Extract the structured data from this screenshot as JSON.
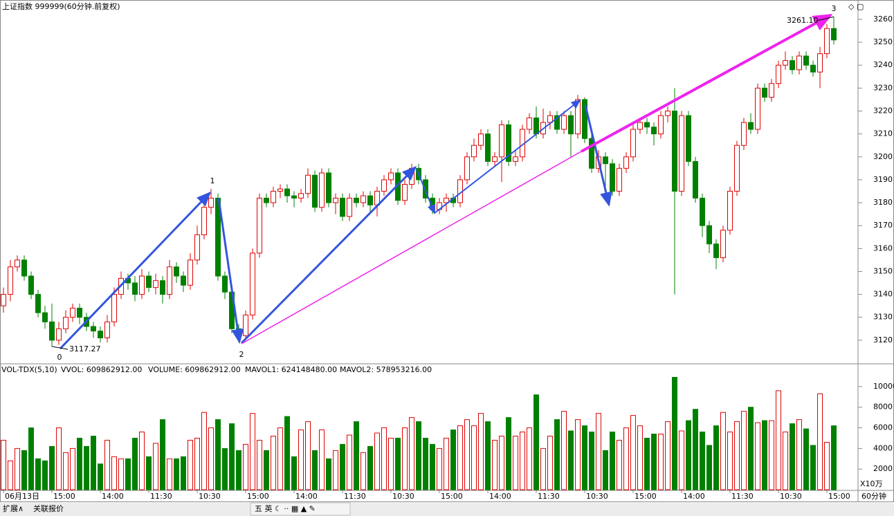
{
  "header": {
    "title": "上证指数 999999(60分钟.前复权)"
  },
  "chart_data": {
    "type": "candlestick",
    "categories": [
      "06月13日",
      null,
      null,
      null,
      null,
      null,
      null,
      "15:00",
      null,
      null,
      null,
      null,
      null,
      null,
      "14:00",
      null,
      null,
      null,
      null,
      null,
      null,
      "11:30",
      null,
      null,
      null,
      null,
      null,
      null,
      "10:30",
      null,
      null,
      null,
      null,
      null,
      null,
      "15:00",
      null,
      null,
      null,
      null,
      null,
      null,
      "14:00",
      null,
      null,
      null,
      null,
      null,
      null,
      "11:30",
      null,
      null,
      null,
      null,
      null,
      null,
      "10:30",
      null,
      null,
      null,
      null,
      null,
      null,
      "15:00",
      null,
      null,
      null,
      null,
      null,
      null,
      "14:00",
      null,
      null,
      null,
      null,
      null,
      null,
      "11:30",
      null,
      null,
      null,
      null,
      null,
      null,
      "10:30",
      null,
      null,
      null,
      null,
      null,
      null,
      "15:00",
      null,
      null,
      null,
      null,
      null,
      null,
      "14:00",
      null,
      null,
      null,
      null,
      null,
      null,
      "11:30",
      null,
      null,
      null,
      null,
      null,
      null,
      "10:30",
      null,
      null,
      null,
      null,
      null,
      null,
      "15:00",
      null
    ],
    "open": [
      3135,
      3140,
      3152,
      3155,
      3148,
      3140,
      3132,
      3128,
      3120,
      3125,
      3130,
      3134,
      3130,
      3126,
      3124,
      3121,
      3128,
      3140,
      3147,
      3145,
      3140,
      3148,
      3143,
      3146,
      3140,
      3152,
      3148,
      3144,
      3155,
      3166,
      3178,
      3182,
      3148,
      3141,
      3125,
      3122,
      3131,
      3158,
      3182,
      3180,
      3185,
      3186,
      3183,
      3182,
      3184,
      3192,
      3178,
      3193,
      3180,
      3182,
      3174,
      3182,
      3180,
      3183,
      3179,
      3185,
      3190,
      3193,
      3181,
      3188,
      3195,
      3190,
      3182,
      3177,
      3180,
      3182,
      3180,
      3190,
      3200,
      3205,
      3210,
      3198,
      3200,
      3214,
      3198,
      3200,
      3212,
      3217,
      3210,
      3215,
      3218,
      3212,
      3218,
      3210,
      3225,
      3208,
      3195,
      3200,
      3197,
      3185,
      3195,
      3200,
      3212,
      3215,
      3213,
      3210,
      3218,
      3220,
      3185,
      3218,
      3198,
      3182,
      3170,
      3162,
      3156,
      3168,
      3185,
      3205,
      3215,
      3212,
      3230,
      3226,
      3232,
      3240,
      3242,
      3238,
      3244,
      3240,
      3237,
      3245,
      3256
    ],
    "high": [
      3143,
      3155,
      3157,
      3157,
      3150,
      3142,
      3135,
      3136,
      3128,
      3133,
      3136,
      3136,
      3132,
      3128,
      3126,
      3131,
      3143,
      3150,
      3149,
      3148,
      3151,
      3150,
      3149,
      3148,
      3155,
      3154,
      3150,
      3158,
      3170,
      3181,
      3186,
      3184,
      3150,
      3143,
      3127,
      3133,
      3160,
      3184,
      3184,
      3187,
      3188,
      3188,
      3185,
      3186,
      3195,
      3194,
      3195,
      3195,
      3184,
      3184,
      3184,
      3184,
      3185,
      3185,
      3187,
      3192,
      3195,
      3195,
      3190,
      3197,
      3197,
      3192,
      3184,
      3182,
      3184,
      3184,
      3192,
      3202,
      3208,
      3212,
      3212,
      3202,
      3216,
      3216,
      3203,
      3214,
      3219,
      3222,
      3221,
      3220,
      3220,
      3220,
      3220,
      3227,
      3226,
      3210,
      3203,
      3202,
      3199,
      3197,
      3202,
      3214,
      3217,
      3217,
      3215,
      3220,
      3222,
      3230,
      3220,
      3220,
      3200,
      3184,
      3172,
      3164,
      3170,
      3187,
      3207,
      3217,
      3219,
      3232,
      3232,
      3234,
      3242,
      3246,
      3244,
      3246,
      3246,
      3242,
      3248,
      3258,
      3261.1
    ],
    "low": [
      3132,
      3137,
      3150,
      3146,
      3138,
      3130,
      3125,
      3117.27,
      3118,
      3123,
      3128,
      3127,
      3124,
      3121,
      3119,
      3119,
      3126,
      3138,
      3142,
      3137,
      3138,
      3141,
      3140,
      3136,
      3138,
      3145,
      3141,
      3142,
      3153,
      3164,
      3175,
      3146,
      3138,
      3123,
      3119,
      3120,
      3129,
      3156,
      3178,
      3178,
      3182,
      3180,
      3178,
      3180,
      3182,
      3176,
      3176,
      3178,
      3175,
      3172,
      3172,
      3178,
      3178,
      3176,
      3174,
      3183,
      3188,
      3179,
      3179,
      3186,
      3188,
      3180,
      3175,
      3175,
      3176,
      3178,
      3178,
      3188,
      3198,
      3203,
      3196,
      3196,
      3189,
      3196,
      3196,
      3198,
      3210,
      3208,
      3208,
      3212,
      3210,
      3210,
      3200,
      3208,
      3206,
      3193,
      3193,
      3182,
      3183,
      3183,
      3193,
      3198,
      3210,
      3210,
      3205,
      3208,
      3215,
      3140,
      3183,
      3196,
      3180,
      3165,
      3158,
      3151,
      3154,
      3166,
      3183,
      3203,
      3210,
      3210,
      3224,
      3224,
      3230,
      3238,
      3236,
      3236,
      3238,
      3235,
      3230,
      3243,
      3249
    ],
    "close": [
      3140,
      3152,
      3155,
      3148,
      3140,
      3132,
      3128,
      3120,
      3125,
      3130,
      3134,
      3130,
      3126,
      3124,
      3121,
      3128,
      3140,
      3147,
      3145,
      3140,
      3148,
      3143,
      3146,
      3140,
      3152,
      3148,
      3144,
      3155,
      3166,
      3178,
      3182,
      3148,
      3141,
      3125,
      3122,
      3131,
      3158,
      3182,
      3180,
      3185,
      3186,
      3183,
      3182,
      3184,
      3192,
      3178,
      3193,
      3180,
      3182,
      3174,
      3182,
      3180,
      3183,
      3179,
      3185,
      3190,
      3193,
      3181,
      3188,
      3195,
      3190,
      3182,
      3177,
      3180,
      3182,
      3180,
      3190,
      3200,
      3205,
      3210,
      3198,
      3200,
      3214,
      3198,
      3200,
      3212,
      3217,
      3210,
      3215,
      3218,
      3212,
      3218,
      3210,
      3225,
      3208,
      3195,
      3200,
      3197,
      3185,
      3195,
      3200,
      3212,
      3215,
      3213,
      3210,
      3218,
      3220,
      3185,
      3218,
      3198,
      3182,
      3170,
      3162,
      3156,
      3168,
      3185,
      3205,
      3215,
      3212,
      3230,
      3226,
      3232,
      3240,
      3242,
      3238,
      3244,
      3240,
      3237,
      3245,
      3256,
      3251
    ],
    "volume": [
      4800,
      2800,
      4000,
      3800,
      6000,
      3000,
      2800,
      4200,
      6000,
      3600,
      4000,
      5000,
      4200,
      5200,
      2500,
      4800,
      3200,
      3000,
      3000,
      5000,
      5600,
      3200,
      4500,
      6800,
      3000,
      3000,
      3200,
      4800,
      5000,
      7500,
      6000,
      6800,
      4000,
      6400,
      3800,
      4400,
      7400,
      4800,
      3800,
      5200,
      6000,
      7100,
      3200,
      5800,
      6600,
      3800,
      5800,
      3000,
      3800,
      4400,
      5300,
      6600,
      3600,
      4200,
      5500,
      6000,
      5000,
      5000,
      6000,
      7000,
      6600,
      5000,
      4400,
      4000,
      5000,
      5800,
      6200,
      6800,
      6200,
      7400,
      6600,
      4800,
      5200,
      7000,
      5200,
      5600,
      6000,
      9200,
      4000,
      5200,
      6800,
      7600,
      5700,
      6800,
      6200,
      5600,
      7400,
      3800,
      5600,
      4800,
      6000,
      7200,
      6200,
      5000,
      5400,
      5400,
      6600,
      10900,
      5700,
      6700,
      7800,
      5600,
      4300,
      6200,
      7500,
      5600,
      6600,
      7600,
      8000,
      6500,
      6700,
      6700,
      9600,
      5600,
      6400,
      6800,
      5900,
      4300,
      9300,
      4600,
      6200
    ],
    "up_color": "#e00000",
    "down_color": "#008000",
    "ylim": [
      3110,
      3263
    ],
    "yticks": [
      3120,
      3130,
      3140,
      3150,
      3160,
      3170,
      3180,
      3190,
      3200,
      3210,
      3220,
      3230,
      3240,
      3250,
      3260
    ],
    "vol_ylim": [
      0,
      11000
    ],
    "vol_yticks": [
      2000,
      4000,
      6000,
      8000,
      10000
    ],
    "vol_unit": "X10万",
    "annotations": [
      "0",
      "1",
      "2",
      "3",
      "3117.27",
      "3261.10"
    ],
    "indicator": [
      "VOL-TDX(5,10)",
      "VVOL: 609862912.00",
      "VOLUME: 609862912.00",
      "MAVOL1: 624148480.00",
      "MAVOL2: 578953216.00"
    ]
  },
  "footer": {
    "tabs": [
      "扩展∧",
      "关联报价"
    ],
    "period": "60分钟"
  }
}
